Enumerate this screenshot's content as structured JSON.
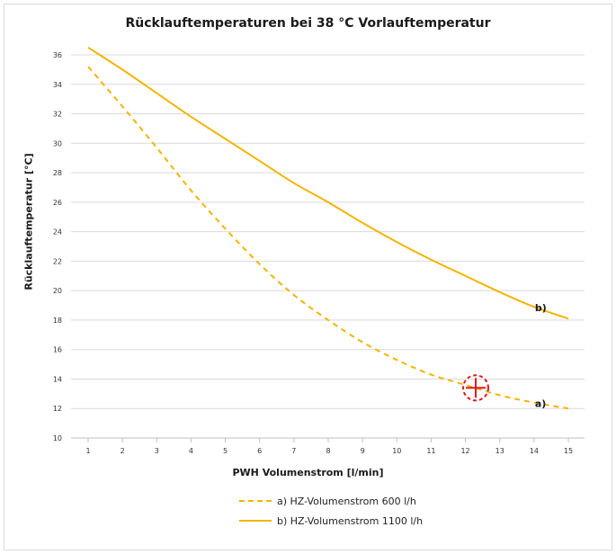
{
  "chart_data": {
    "type": "line",
    "title": "Rücklauftemperaturen bei 38 °C Vorlauftemperatur",
    "xlabel": "PWH Volumenstrom [l/min]",
    "ylabel": "Rücklauftemperatur [°C]",
    "xlim": [
      1,
      15
    ],
    "ylim": [
      10,
      37
    ],
    "xticks": [
      1,
      2,
      3,
      4,
      5,
      6,
      7,
      8,
      9,
      10,
      11,
      12,
      13,
      14,
      15
    ],
    "yticks": [
      10,
      12,
      14,
      16,
      18,
      20,
      22,
      24,
      26,
      28,
      30,
      32,
      34,
      36
    ],
    "grid": true,
    "legend_position": "bottom",
    "series": [
      {
        "name": "a)  HZ-Volumenstrom 600 l/h",
        "end_label": "a)",
        "style": "dashed",
        "color": "#f4b400",
        "x": [
          1,
          2,
          3,
          4,
          5,
          6,
          7,
          8,
          9,
          10,
          11,
          12,
          13,
          14,
          15
        ],
        "y": [
          35.2,
          32.5,
          29.7,
          26.8,
          24.2,
          21.8,
          19.7,
          18.0,
          16.5,
          15.3,
          14.3,
          13.6,
          12.9,
          12.4,
          12.0
        ]
      },
      {
        "name": "b)  HZ-Volumenstrom 1100 l/h",
        "end_label": "b)",
        "style": "solid",
        "color": "#f4b400",
        "x": [
          1,
          2,
          3,
          4,
          5,
          6,
          7,
          8,
          9,
          10,
          11,
          12,
          13,
          14,
          15
        ],
        "y": [
          36.5,
          35.0,
          33.4,
          31.8,
          30.3,
          28.8,
          27.3,
          26.0,
          24.6,
          23.3,
          22.1,
          21.0,
          19.9,
          18.9,
          18.1
        ]
      }
    ],
    "marker": {
      "name": "crosshair-target-icon",
      "x": 12.3,
      "y": 13.4,
      "color": "#e0191e"
    }
  }
}
